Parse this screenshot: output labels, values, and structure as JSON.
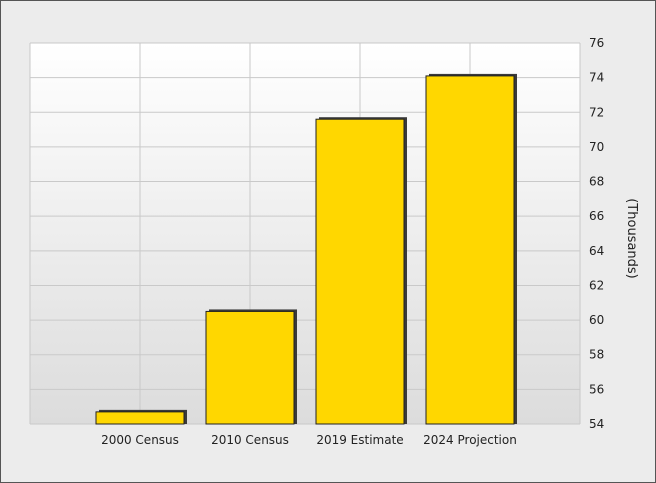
{
  "chart_data": {
    "type": "bar",
    "categories": [
      "2000 Census",
      "2010 Census",
      "2019 Estimate",
      "2024 Projection"
    ],
    "values": [
      54.7,
      60.5,
      71.6,
      74.1
    ],
    "title": "",
    "xlabel": "",
    "ylabel": "(Thousands)",
    "ylim": [
      54,
      76
    ],
    "y_ticks": [
      "54",
      "56",
      "58",
      "60",
      "62",
      "64",
      "66",
      "68",
      "70",
      "72",
      "74",
      "76"
    ],
    "y_axis_side": "right",
    "grid": true,
    "legend": "none",
    "colors": {
      "bar_fill": "#FFD700",
      "bar_edge": "#222222",
      "bar_shadow": "#3a3a3a",
      "grid": "#c9c9c9",
      "plot_top": "#ffffff",
      "plot_bottom": "#dcdcdc",
      "background": "#ececec",
      "frame": "#555555"
    }
  }
}
